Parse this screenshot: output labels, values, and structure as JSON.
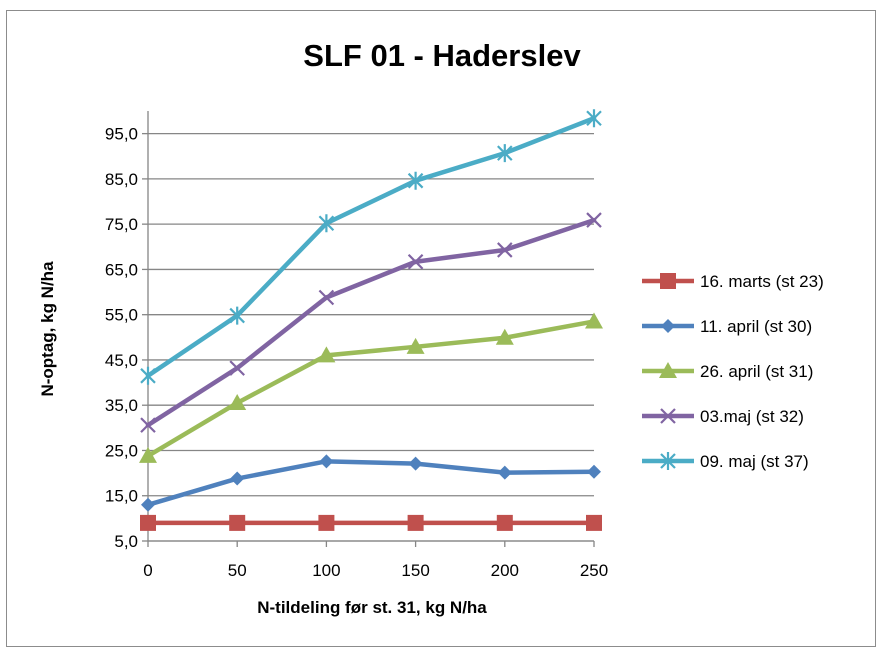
{
  "chart_data": {
    "type": "line",
    "title": "SLF 01 - Haderslev",
    "xlabel": "N-tildeling før st. 31, kg N/ha",
    "ylabel": "N-optag, kg N/ha",
    "x": [
      0,
      50,
      100,
      150,
      200,
      250
    ],
    "x_tick_labels": [
      "0",
      "50",
      "100",
      "150",
      "200",
      "250"
    ],
    "y_ticks": [
      5,
      15,
      25,
      35,
      45,
      55,
      65,
      75,
      85,
      95
    ],
    "y_tick_labels": [
      "5,0",
      "15,0",
      "25,0",
      "35,0",
      "45,0",
      "55,0",
      "65,0",
      "75,0",
      "85,0",
      "95,0"
    ],
    "xlim": [
      0,
      250
    ],
    "ylim": [
      5,
      100
    ],
    "grid": "horizontal",
    "legend_position": "right",
    "series": [
      {
        "name": "16. marts (st 23)",
        "color": "#c0504d",
        "marker": "square",
        "values": [
          9.0,
          9.0,
          9.0,
          9.0,
          9.0,
          9.0
        ]
      },
      {
        "name": "11. april (st 30)",
        "color": "#4f81bd",
        "marker": "diamond",
        "values": [
          13.0,
          18.8,
          22.6,
          22.1,
          20.1,
          20.3
        ]
      },
      {
        "name": "26. april (st 31)",
        "color": "#9bbb59",
        "marker": "triangle",
        "values": [
          23.8,
          35.5,
          46.0,
          47.9,
          49.9,
          53.5
        ]
      },
      {
        "name": "03.maj (st 32)",
        "color": "#8064a2",
        "marker": "x",
        "values": [
          30.6,
          43.2,
          58.8,
          66.7,
          69.3,
          75.9
        ]
      },
      {
        "name": "09. maj (st 37)",
        "color": "#4bacc6",
        "marker": "star",
        "values": [
          41.5,
          54.8,
          75.2,
          84.6,
          90.7,
          98.4
        ]
      }
    ]
  }
}
